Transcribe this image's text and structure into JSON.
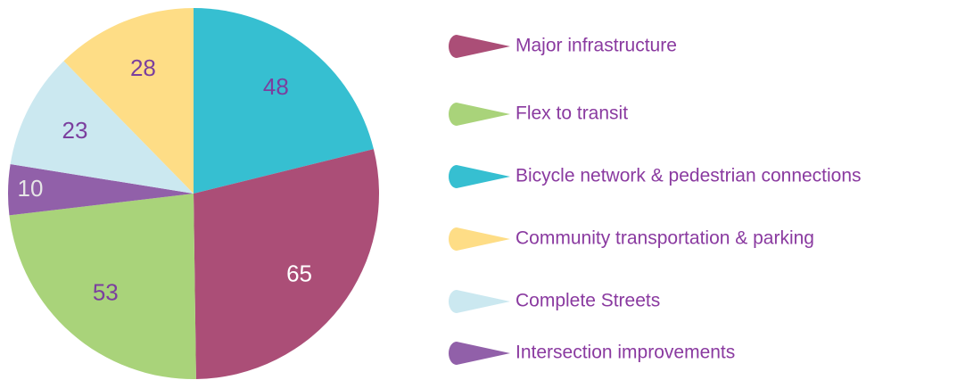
{
  "chart_data": {
    "type": "pie",
    "categories": [
      "Major infrastructure",
      "Flex to transit",
      "Bicycle network & pedestrian connections",
      "Community transportation & parking",
      "Complete Streets",
      "Intersection improvements"
    ],
    "values": [
      65,
      53,
      48,
      28,
      23,
      10
    ],
    "colors": [
      "#ab4e77",
      "#a9d37a",
      "#36bfd1",
      "#fedd86",
      "#cbe8f0",
      "#9160a9"
    ],
    "label_colors": [
      "#ffffff",
      "#7b3f9e",
      "#7b3f9e",
      "#7b3f9e",
      "#7b3f9e",
      "#e6e6e6"
    ],
    "legend": "right"
  }
}
